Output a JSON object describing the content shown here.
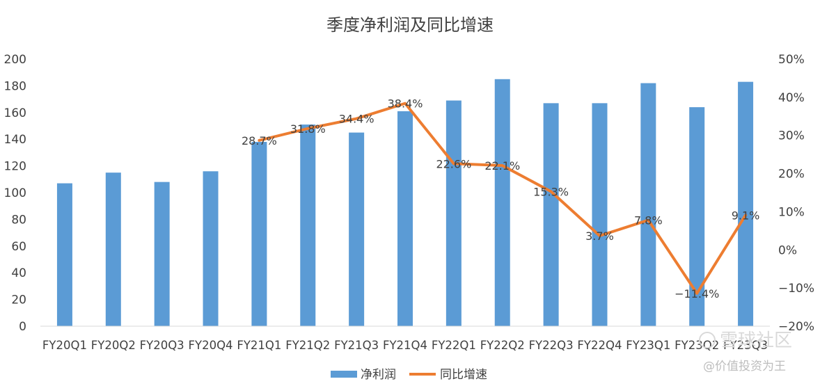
{
  "chart_data": {
    "type": "bar+line",
    "title": "季度净利润及同比增速",
    "categories": [
      "FY20Q1",
      "FY20Q2",
      "FY20Q3",
      "FY20Q4",
      "FY21Q1",
      "FY21Q2",
      "FY21Q3",
      "FY21Q4",
      "FY22Q1",
      "FY22Q2",
      "FY22Q3",
      "FY22Q4",
      "FY23Q1",
      "FY23Q2",
      "FY23Q3"
    ],
    "series": [
      {
        "name": "净利润",
        "type": "bar",
        "axis": "left",
        "color": "#5b9bd5",
        "values": [
          107,
          115,
          108,
          116,
          138,
          151,
          145,
          161,
          169,
          185,
          167,
          167,
          182,
          164,
          183
        ]
      },
      {
        "name": "同比增速",
        "type": "line",
        "axis": "right",
        "color": "#ed7d31",
        "values": [
          null,
          null,
          null,
          null,
          28.7,
          31.8,
          34.4,
          38.4,
          22.6,
          22.1,
          15.3,
          3.7,
          7.8,
          -11.4,
          9.1
        ],
        "labels": [
          "",
          "",
          "",
          "",
          "28.7%",
          "31.8%",
          "34.4%",
          "38.4%",
          "22.6%",
          "22.1%",
          "15.3%",
          "3.7%",
          "7.8%",
          "−11.4%",
          "9.1%"
        ]
      }
    ],
    "y_left": {
      "min": 0,
      "max": 200,
      "ticks": [
        "0",
        "20",
        "40",
        "60",
        "80",
        "100",
        "120",
        "140",
        "160",
        "180",
        "200"
      ]
    },
    "y_right": {
      "min": -20,
      "max": 50,
      "ticks": [
        "−20%",
        "−10%",
        "0%",
        "10%",
        "20%",
        "30%",
        "40%",
        "50%"
      ]
    },
    "grid": false,
    "legend": "bottom"
  },
  "watermark": {
    "brand": "雪球社区",
    "handle": "@价值投资为王"
  }
}
